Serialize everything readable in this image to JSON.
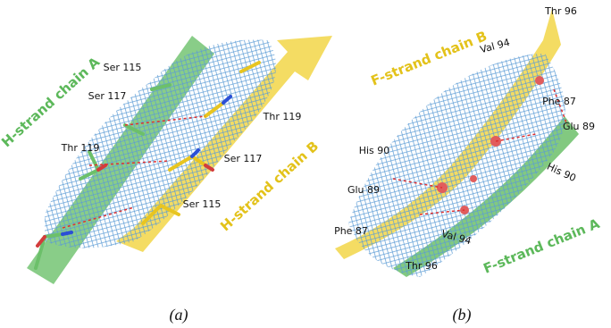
{
  "panels": [
    {
      "caption": "(a)",
      "strands": [
        "H-strand chain A",
        "H-strand chain B"
      ],
      "residues": [
        "Ser 115",
        "Ser 117",
        "Thr 119",
        "Thr 119",
        "Ser 117",
        "Ser 115"
      ]
    },
    {
      "caption": "(b)",
      "strands": [
        "F-strand chain B",
        "F-strand chain A"
      ],
      "residues": [
        "Thr 96",
        "Val 94",
        "Phe 87",
        "Glu 89",
        "His 90",
        "His 90",
        "Glu 89",
        "Phe 87",
        "Val 94",
        "Thr 96"
      ]
    }
  ]
}
